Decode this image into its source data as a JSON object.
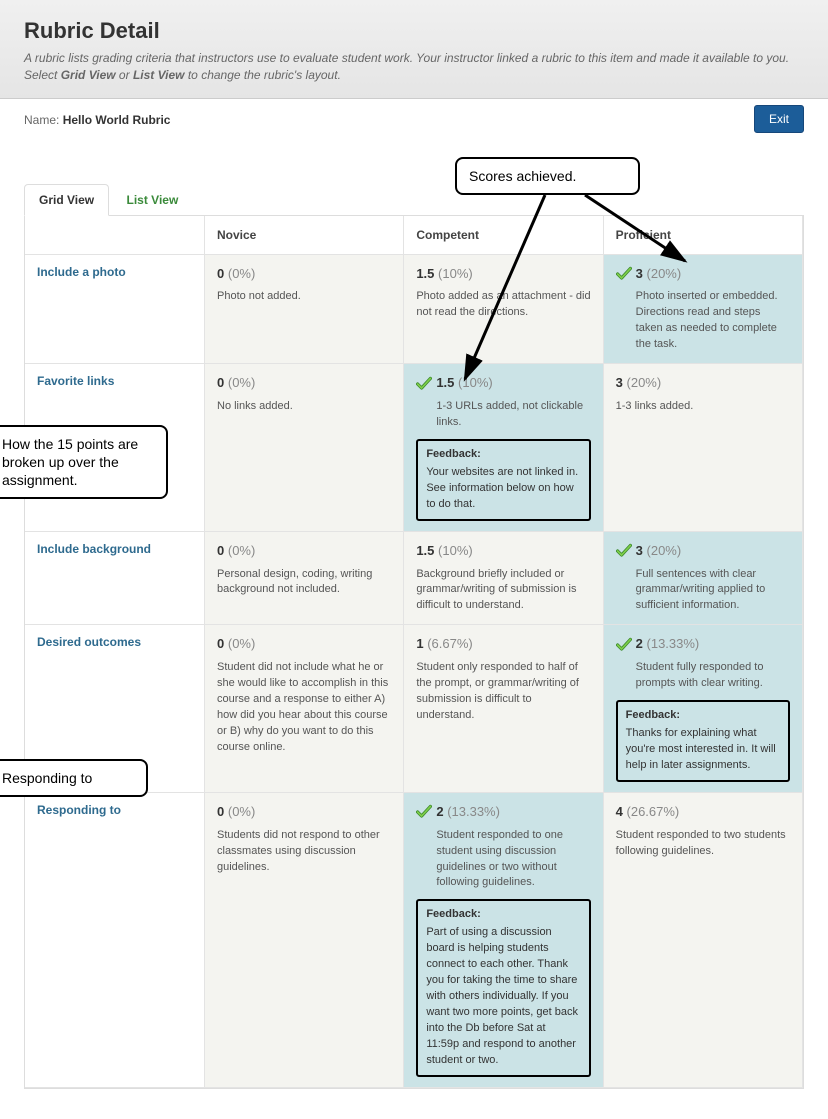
{
  "header": {
    "title": "Rubric Detail",
    "descriptionParts": [
      "A rubric lists grading criteria that instructors use to evaluate student work. Your instructor linked a rubric to this item and made it available to you. Select ",
      "Grid View",
      " or ",
      "List View",
      " to change the rubric's layout."
    ]
  },
  "nameLabel": "Name:",
  "rubricName": "Hello World Rubric",
  "exitLabel": "Exit",
  "tabs": {
    "grid": "Grid View",
    "list": "List View"
  },
  "columns": [
    "Novice",
    "Competent",
    "Proficient"
  ],
  "rows": [
    {
      "label": "Include a photo",
      "cells": [
        {
          "score": "0",
          "pct": "(0%)",
          "desc": "Photo not added.",
          "selected": false
        },
        {
          "score": "1.5",
          "pct": "(10%)",
          "desc": "Photo added as an attachment - did not read the directions.",
          "selected": false
        },
        {
          "score": "3",
          "pct": "(20%)",
          "desc": "Photo inserted or embedded. Directions read and steps taken as needed to complete the task.",
          "selected": true
        }
      ]
    },
    {
      "label": "Favorite links",
      "cells": [
        {
          "score": "0",
          "pct": "(0%)",
          "desc": "No links added.",
          "selected": false
        },
        {
          "score": "1.5",
          "pct": "(10%)",
          "desc": "1-3 URLs added, not clickable links.",
          "selected": true,
          "feedback": "Your websites are not linked in. See information below on how to do that."
        },
        {
          "score": "3",
          "pct": "(20%)",
          "desc": "1-3 links added.",
          "selected": false
        }
      ]
    },
    {
      "label": "Include background",
      "cells": [
        {
          "score": "0",
          "pct": "(0%)",
          "desc": "Personal design, coding, writing background not included.",
          "selected": false
        },
        {
          "score": "1.5",
          "pct": "(10%)",
          "desc": "Background briefly included or grammar/writing of submission is difficult to understand.",
          "selected": false
        },
        {
          "score": "3",
          "pct": "(20%)",
          "desc": "Full sentences with clear grammar/writing applied to sufficient information.",
          "selected": true
        }
      ]
    },
    {
      "label": "Desired outcomes",
      "cells": [
        {
          "score": "0",
          "pct": "(0%)",
          "desc": "Student did not include what he or she would like to accomplish in this course and a response to either A) how did you hear about this course or B) why do you want to do this course online.",
          "selected": false
        },
        {
          "score": "1",
          "pct": "(6.67%)",
          "desc": "Student only responded to half of the prompt, or grammar/writing of submission is difficult to understand.",
          "selected": false
        },
        {
          "score": "2",
          "pct": "(13.33%)",
          "desc": "Student fully responded to prompts with clear writing.",
          "selected": true,
          "feedback": "Thanks for explaining what you're most interested in. It will help in later assignments."
        }
      ]
    },
    {
      "label": "Responding to",
      "cells": [
        {
          "score": "0",
          "pct": "(0%)",
          "desc": "Students did not respond to other classmates using discussion guidelines.",
          "selected": false
        },
        {
          "score": "2",
          "pct": "(13.33%)",
          "desc": "Student responded to one student using discussion guidelines or two without following guidelines.",
          "selected": true,
          "feedback": "Part of using a discussion board is helping students connect to each other. Thank you for taking the time to share with others individually. If you want two more points, get back into the Db before Sat at 11:59p and respond to another student or two."
        },
        {
          "score": "4",
          "pct": "(26.67%)",
          "desc": "Student responded to two students following guidelines.",
          "selected": false
        }
      ]
    }
  ],
  "callouts": {
    "scores": "Scores achieved.",
    "breakdown": "How the 15 points are broken up over the assignment.",
    "responding": "Responding to"
  },
  "feedbackLabel": "Feedback:",
  "colors": {
    "selectedBg": "#cbe3e6",
    "checkGreen": "#5fb04a",
    "exitBg": "#1c5d99",
    "rowHeader": "#2e6a8e",
    "listTab": "#3a8a3a"
  }
}
